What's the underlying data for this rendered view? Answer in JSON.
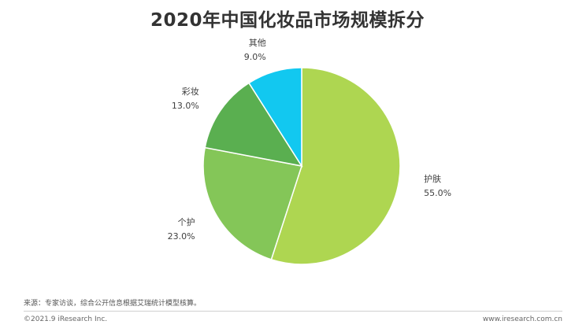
{
  "title": "2020年中国化妆品市场规模拆分",
  "chart_data": {
    "type": "pie",
    "title": "2020年中国化妆品市场规模拆分",
    "slices": [
      {
        "label": "护肤",
        "value": 55.0,
        "display": "55.0%",
        "color": "#aed651"
      },
      {
        "label": "个护",
        "value": 23.0,
        "display": "23.0%",
        "color": "#84c658"
      },
      {
        "label": "彩妆",
        "value": 13.0,
        "display": "13.0%",
        "color": "#5aaf50"
      },
      {
        "label": "其他",
        "value": 9.0,
        "display": "9.0%",
        "color": "#12c8f0"
      }
    ]
  },
  "footer": {
    "source": "来源：专家访谈，综合公开信息根据艾瑞统计模型核算。",
    "copyright": "©2021.9 iResearch Inc.",
    "website": "www.iresearch.com.cn"
  }
}
